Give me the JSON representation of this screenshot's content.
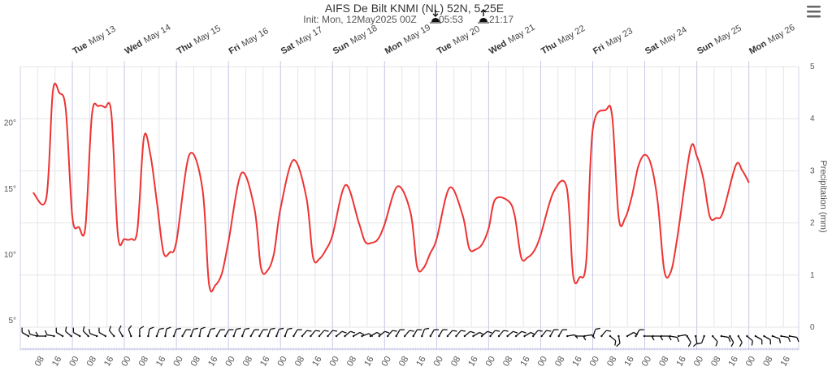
{
  "chart_data": {
    "type": "line",
    "title": "AIFS De Bilt KNMI (NL) 52N, 5.25E",
    "subtitle": {
      "init": "Init: Mon, 12May2025 00Z",
      "sunrise": "05:53",
      "sunset": "21:17"
    },
    "colors": {
      "temperature": "#ee3333",
      "grid": "#e6e6e6",
      "day_line": "#c8cbe6"
    },
    "x_start": "2025-05-12 00:00",
    "x_end": "2025-05-26 23:00",
    "x_tick_labels": [
      "08",
      "16",
      "00",
      "08",
      "16",
      "00",
      "08",
      "16",
      "00",
      "08",
      "16",
      "00",
      "08",
      "16",
      "00",
      "08",
      "16",
      "00",
      "08",
      "16",
      "00",
      "08",
      "16",
      "00",
      "08",
      "16",
      "00",
      "08",
      "16",
      "00",
      "08",
      "16",
      "00",
      "08",
      "16",
      "00",
      "08",
      "16",
      "00",
      "08",
      "16",
      "00",
      "08",
      "16"
    ],
    "day_labels": [
      {
        "weekday": "Tue",
        "date": "May 13"
      },
      {
        "weekday": "Wed",
        "date": "May 14"
      },
      {
        "weekday": "Thu",
        "date": "May 15"
      },
      {
        "weekday": "Fri",
        "date": "May 16"
      },
      {
        "weekday": "Sat",
        "date": "May 17"
      },
      {
        "weekday": "Sun",
        "date": "May 18"
      },
      {
        "weekday": "Mon",
        "date": "May 19"
      },
      {
        "weekday": "Tue",
        "date": "May 20"
      },
      {
        "weekday": "Wed",
        "date": "May 21"
      },
      {
        "weekday": "Thu",
        "date": "May 22"
      },
      {
        "weekday": "Fri",
        "date": "May 23"
      },
      {
        "weekday": "Sat",
        "date": "May 24"
      },
      {
        "weekday": "Sun",
        "date": "May 25"
      },
      {
        "weekday": "Mon",
        "date": "May 26"
      }
    ],
    "y_left": {
      "ticks": [
        "5°",
        "10°",
        "15°",
        "20°"
      ],
      "range": [
        4.5,
        24.3
      ]
    },
    "y_right": {
      "label": "Precipitation (mm)",
      "ticks": [
        "0",
        "1",
        "2",
        "3",
        "4",
        "5"
      ],
      "range": [
        0,
        5
      ]
    },
    "series": [
      {
        "points": [
          [
            "2025-05-12 06:00",
            14.7
          ],
          [
            "2025-05-12 12:00",
            14.3
          ],
          [
            "2025-05-12 15:00",
            22.4
          ],
          [
            "2025-05-12 18:00",
            22.3
          ],
          [
            "2025-05-12 21:00",
            21.0
          ],
          [
            "2025-05-13 00:00",
            12.9
          ],
          [
            "2025-05-13 03:00",
            12.1
          ],
          [
            "2025-05-13 06:00",
            12.1
          ],
          [
            "2025-05-13 09:00",
            20.6
          ],
          [
            "2025-05-13 12:00",
            21.3
          ],
          [
            "2025-05-13 15:00",
            21.2
          ],
          [
            "2025-05-13 18:00",
            20.7
          ],
          [
            "2025-05-13 21:00",
            11.5
          ],
          [
            "2025-05-14 00:00",
            11.2
          ],
          [
            "2025-05-14 03:00",
            11.2
          ],
          [
            "2025-05-14 06:00",
            11.9
          ],
          [
            "2025-05-14 09:00",
            18.9
          ],
          [
            "2025-05-14 12:00",
            17.6
          ],
          [
            "2025-05-14 15:00",
            14.0
          ],
          [
            "2025-05-14 18:00",
            10.2
          ],
          [
            "2025-05-14 21:00",
            10.2
          ],
          [
            "2025-05-15 00:00",
            11.0
          ],
          [
            "2025-05-15 06:00",
            17.6
          ],
          [
            "2025-05-15 12:00",
            15.0
          ],
          [
            "2025-05-15 15:00",
            7.8
          ],
          [
            "2025-05-15 18:00",
            7.7
          ],
          [
            "2025-05-15 21:00",
            8.6
          ],
          [
            "2025-05-16 00:00",
            11.0
          ],
          [
            "2025-05-16 06:00",
            16.2
          ],
          [
            "2025-05-16 12:00",
            13.5
          ],
          [
            "2025-05-16 15:00",
            9.0
          ],
          [
            "2025-05-16 18:00",
            8.8
          ],
          [
            "2025-05-16 21:00",
            10.1
          ],
          [
            "2025-05-17 00:00",
            13.5
          ],
          [
            "2025-05-17 06:00",
            17.2
          ],
          [
            "2025-05-17 12:00",
            14.3
          ],
          [
            "2025-05-17 15:00",
            9.8
          ],
          [
            "2025-05-17 18:00",
            9.7
          ],
          [
            "2025-05-17 21:00",
            10.4
          ],
          [
            "2025-05-18 00:00",
            11.5
          ],
          [
            "2025-05-18 06:00",
            15.3
          ],
          [
            "2025-05-18 12:00",
            12.5
          ],
          [
            "2025-05-18 15:00",
            11.0
          ],
          [
            "2025-05-18 18:00",
            10.9
          ],
          [
            "2025-05-18 21:00",
            11.2
          ],
          [
            "2025-05-19 00:00",
            12.3
          ],
          [
            "2025-05-19 06:00",
            15.2
          ],
          [
            "2025-05-19 12:00",
            13.2
          ],
          [
            "2025-05-19 15:00",
            9.1
          ],
          [
            "2025-05-19 18:00",
            9.0
          ],
          [
            "2025-05-19 21:00",
            10.1
          ],
          [
            "2025-05-20 00:00",
            11.2
          ],
          [
            "2025-05-20 06:00",
            15.1
          ],
          [
            "2025-05-20 12:00",
            13.0
          ],
          [
            "2025-05-20 15:00",
            10.5
          ],
          [
            "2025-05-20 18:00",
            10.4
          ],
          [
            "2025-05-20 21:00",
            10.8
          ],
          [
            "2025-05-21 00:00",
            12.0
          ],
          [
            "2025-05-21 03:00",
            14.2
          ],
          [
            "2025-05-21 09:00",
            14.1
          ],
          [
            "2025-05-21 12:00",
            13.0
          ],
          [
            "2025-05-21 15:00",
            9.8
          ],
          [
            "2025-05-21 18:00",
            9.8
          ],
          [
            "2025-05-21 21:00",
            10.3
          ],
          [
            "2025-05-22 00:00",
            11.5
          ],
          [
            "2025-05-22 06:00",
            14.8
          ],
          [
            "2025-05-22 12:00",
            15.1
          ],
          [
            "2025-05-22 15:00",
            8.4
          ],
          [
            "2025-05-22 18:00",
            8.3
          ],
          [
            "2025-05-22 21:00",
            9.5
          ],
          [
            "2025-05-23 00:00",
            19.5
          ],
          [
            "2025-05-23 06:00",
            21.0
          ],
          [
            "2025-05-23 09:00",
            20.5
          ],
          [
            "2025-05-23 12:00",
            12.8
          ],
          [
            "2025-05-23 15:00",
            12.8
          ],
          [
            "2025-05-23 18:00",
            14.4
          ],
          [
            "2025-05-23 21:00",
            16.7
          ],
          [
            "2025-05-24 00:00",
            17.6
          ],
          [
            "2025-05-24 03:00",
            16.8
          ],
          [
            "2025-05-24 06:00",
            14.0
          ],
          [
            "2025-05-24 09:00",
            8.8
          ],
          [
            "2025-05-24 12:00",
            8.7
          ],
          [
            "2025-05-24 15:00",
            11.3
          ],
          [
            "2025-05-24 21:00",
            18.0
          ],
          [
            "2025-05-25 00:00",
            17.5
          ],
          [
            "2025-05-25 03:00",
            15.8
          ],
          [
            "2025-05-25 06:00",
            12.9
          ],
          [
            "2025-05-25 09:00",
            12.8
          ],
          [
            "2025-05-25 12:00",
            13.2
          ],
          [
            "2025-05-25 18:00",
            16.8
          ],
          [
            "2025-05-25 21:00",
            16.4
          ],
          [
            "2025-05-26 00:00",
            15.5
          ]
        ]
      }
    ],
    "wind_barbs": [
      -60,
      -75,
      -90,
      -80,
      -60,
      -50,
      -60,
      -45,
      -70,
      -60,
      -40,
      -30,
      -20,
      0,
      10,
      20,
      10,
      20,
      30,
      20,
      10,
      20,
      30,
      30,
      20,
      20,
      30,
      30,
      20,
      20,
      20,
      30,
      40,
      40,
      40,
      40,
      50,
      50,
      60,
      70,
      60,
      50,
      40,
      30,
      40,
      30,
      20,
      30,
      30,
      40,
      40,
      50,
      60,
      50,
      40,
      40,
      50,
      50,
      60,
      40,
      40,
      30,
      30,
      80,
      90,
      80,
      20,
      40,
      130,
      170,
      60,
      30,
      90,
      90,
      90,
      100,
      80,
      150,
      170,
      200,
      140,
      100,
      150,
      150,
      130,
      120,
      120,
      110,
      100,
      100
    ],
    "grid": true,
    "legend": "none"
  },
  "menu": {
    "icon": "hamburger-menu-icon"
  }
}
